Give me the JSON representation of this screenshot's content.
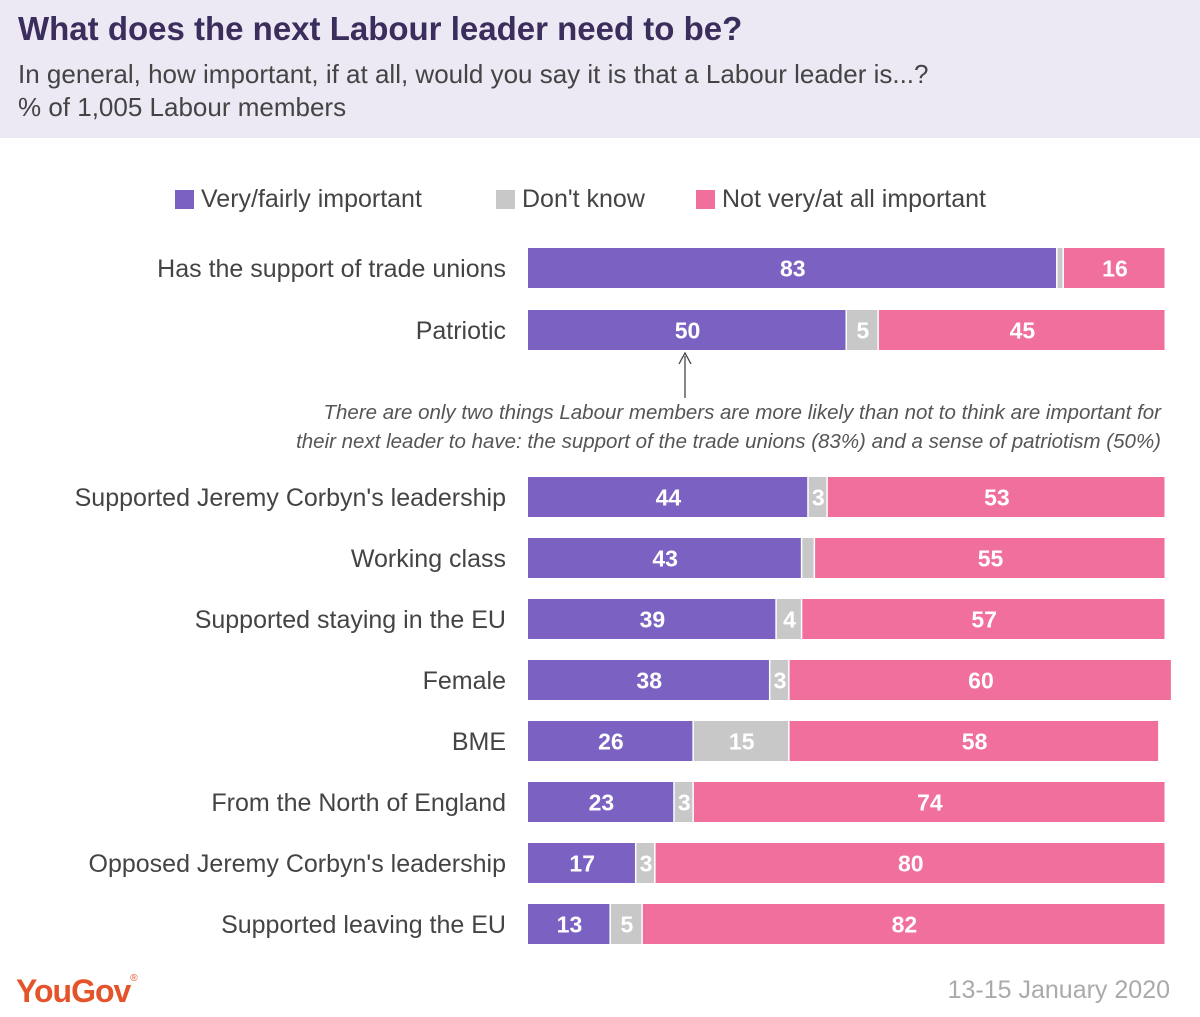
{
  "header": {
    "title": "What does the next Labour leader need to be?",
    "subtitle_line1": "In general, how important, if at all, would you say it is that a Labour leader is...?",
    "subtitle_line2": "% of 1,005 Labour members"
  },
  "legend": [
    {
      "label": "Very/fairly important",
      "color": "#7b62c2"
    },
    {
      "label": "Don't know",
      "color": "#c8c8c8"
    },
    {
      "label": "Not very/at all important",
      "color": "#f06f9d"
    }
  ],
  "annotation": {
    "line1": "There are only two things Labour members are more likely than not to think are important for",
    "line2": "their next leader to have: the support of the trade unions (83%) and a sense of patriotism (50%)"
  },
  "footer": {
    "brand": "YouGov",
    "brand_mark": "®",
    "date": "13-15 January 2020"
  },
  "chart_data": {
    "type": "bar",
    "orientation": "horizontal",
    "stacked": true,
    "categories": [
      "Has the support of trade unions",
      "Patriotic",
      "Supported Jeremy Corbyn's leadership",
      "Working class",
      "Supported staying in the EU",
      "Female",
      "BME",
      "From the North of England",
      "Opposed Jeremy Corbyn's leadership",
      "Supported leaving the EU"
    ],
    "series": [
      {
        "name": "Very/fairly important",
        "color": "#7b62c2",
        "values": [
          83,
          50,
          44,
          43,
          39,
          38,
          26,
          23,
          17,
          13
        ],
        "labels": [
          "83",
          "50",
          "44",
          "43",
          "39",
          "38",
          "26",
          "23",
          "17",
          "13"
        ]
      },
      {
        "name": "Don't know",
        "color": "#c8c8c8",
        "values": [
          1,
          5,
          3,
          2,
          4,
          3,
          15,
          3,
          3,
          5
        ],
        "labels": [
          "",
          "5",
          "3",
          "",
          "4",
          "3",
          "15",
          "3",
          "3",
          "5"
        ]
      },
      {
        "name": "Not very/at all important",
        "color": "#f06f9d",
        "values": [
          16,
          45,
          53,
          55,
          57,
          60,
          58,
          74,
          80,
          82
        ],
        "labels": [
          "16",
          "45",
          "53",
          "55",
          "57",
          "60",
          "58",
          "74",
          "80",
          "82"
        ]
      }
    ],
    "xlim": [
      0,
      100
    ],
    "legend_position": "top",
    "grid": false
  }
}
